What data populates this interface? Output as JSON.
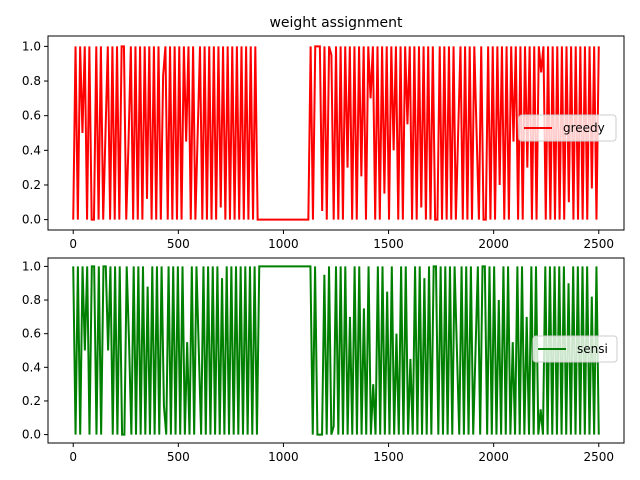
{
  "chart_data": [
    {
      "type": "line",
      "title": "weight assignment",
      "xlabel": "",
      "ylabel": "",
      "xlim": [
        -120,
        2620
      ],
      "ylim": [
        -0.05,
        1.05
      ],
      "xticks": [
        0,
        500,
        1000,
        1500,
        2000,
        2500
      ],
      "xtick_labels": [
        "0",
        "500",
        "1000",
        "1500",
        "2000",
        "2500"
      ],
      "yticks": [
        0.0,
        0.2,
        0.4,
        0.6,
        0.8,
        1.0
      ],
      "ytick_labels": [
        "0.0",
        "0.2",
        "0.4",
        "0.6",
        "0.8",
        "1.0"
      ],
      "grid": false,
      "legend_position": "right",
      "series": [
        {
          "name": "greedy",
          "color": "#ff0000",
          "x_range": [
            0,
            2500
          ],
          "values": [
            0,
            1,
            0,
            1,
            0.5,
            1,
            0,
            1,
            0,
            0,
            1,
            0,
            1,
            0,
            0.5,
            1,
            0,
            1,
            0,
            1,
            0,
            1,
            1,
            0,
            0.45,
            1,
            0,
            1,
            0,
            1,
            0,
            1,
            0.12,
            1,
            0,
            1,
            0,
            1,
            0,
            0.83,
            1,
            0,
            1,
            0,
            1,
            0,
            1,
            0,
            1,
            0.45,
            1,
            0,
            1,
            0,
            0.5,
            1,
            0,
            1,
            0,
            1,
            0,
            1,
            0,
            1,
            0.07,
            1,
            0,
            1,
            0,
            1,
            0,
            1,
            0,
            1,
            0,
            1,
            0,
            1,
            0,
            1,
            0,
            0,
            0,
            0,
            0,
            0,
            0,
            0,
            0,
            0,
            0,
            0,
            0,
            0,
            0,
            0,
            0,
            0,
            0,
            0,
            0,
            0,
            0,
            1,
            0,
            1,
            1,
            1,
            0.05,
            1,
            0,
            1,
            0.95,
            0,
            1,
            0,
            1,
            0,
            1,
            0.3,
            1,
            0,
            1,
            0,
            1,
            0.25,
            1,
            0,
            1,
            0.7,
            1,
            0,
            1,
            0,
            1,
            0.15,
            1,
            0,
            1,
            0.4,
            1,
            0,
            1,
            0,
            1,
            0.55,
            1,
            0,
            1,
            0,
            1,
            0.07,
            1,
            0,
            1,
            0,
            1,
            0,
            0,
            1,
            0,
            1,
            0,
            1,
            0,
            1,
            0,
            0.5,
            1,
            0,
            1,
            0,
            1,
            0,
            1,
            0.5,
            0,
            1,
            0,
            0,
            1,
            0,
            1,
            0,
            1,
            0.2,
            1,
            0,
            1,
            0,
            1,
            0.45,
            1,
            0,
            1,
            0,
            1,
            0.3,
            1,
            0,
            1,
            0,
            1,
            0.85,
            1,
            0,
            1,
            0,
            1,
            0,
            1,
            0,
            1,
            0,
            1,
            0.1,
            1,
            0,
            1,
            0,
            1,
            0,
            1,
            0,
            1,
            0.18,
            1,
            0,
            1
          ]
        },
        {
          "name": "sensi",
          "color": "#008000",
          "x_range": [
            0,
            2500
          ],
          "values": [
            1,
            0,
            1,
            0,
            1,
            0.5,
            1,
            0,
            1,
            1,
            0,
            1,
            0,
            1,
            1,
            0.5,
            1,
            0,
            1,
            0,
            1,
            0,
            0,
            1,
            0.55,
            0,
            1,
            0,
            1,
            0,
            1,
            0,
            0.88,
            0,
            1,
            0,
            1,
            0,
            1,
            0.17,
            0,
            1,
            0,
            1,
            0,
            1,
            0,
            1,
            0,
            0.55,
            0,
            1,
            0,
            1,
            0.5,
            0,
            1,
            0,
            1,
            0,
            1,
            0,
            1,
            0,
            0.93,
            0,
            1,
            0,
            1,
            0,
            1,
            0,
            1,
            0,
            1,
            0,
            1,
            0,
            1,
            0,
            1,
            1,
            1,
            1,
            1,
            1,
            1,
            1,
            1,
            1,
            1,
            1,
            1,
            1,
            1,
            1,
            1,
            1,
            1,
            1,
            1,
            1,
            1,
            0,
            1,
            0,
            0,
            0,
            0.95,
            0,
            1,
            0,
            0.05,
            1,
            0,
            1,
            0,
            1,
            0,
            0.7,
            0,
            1,
            0,
            1,
            0,
            0.75,
            0,
            1,
            0,
            0.3,
            0,
            1,
            0,
            1,
            0,
            0.85,
            0,
            1,
            0,
            0.6,
            0,
            1,
            0,
            1,
            0,
            0.45,
            0,
            1,
            0,
            1,
            0,
            0.93,
            0,
            1,
            0,
            1,
            1,
            0,
            1,
            0,
            1,
            0,
            1,
            0,
            1,
            0.5,
            0,
            1,
            0,
            1,
            0,
            1,
            0,
            0.5,
            1,
            0,
            1,
            1,
            0,
            1,
            0,
            1,
            0,
            0.8,
            0,
            1,
            0,
            1,
            0,
            0.55,
            0,
            1,
            0,
            1,
            0,
            0.7,
            0,
            1,
            0,
            1,
            0,
            0.15,
            0,
            1,
            0,
            1,
            0,
            1,
            0,
            1,
            0,
            1,
            0,
            0.9,
            0,
            1,
            0,
            1,
            0,
            1,
            0,
            1,
            0,
            0.82,
            0,
            1,
            0
          ]
        }
      ]
    }
  ]
}
